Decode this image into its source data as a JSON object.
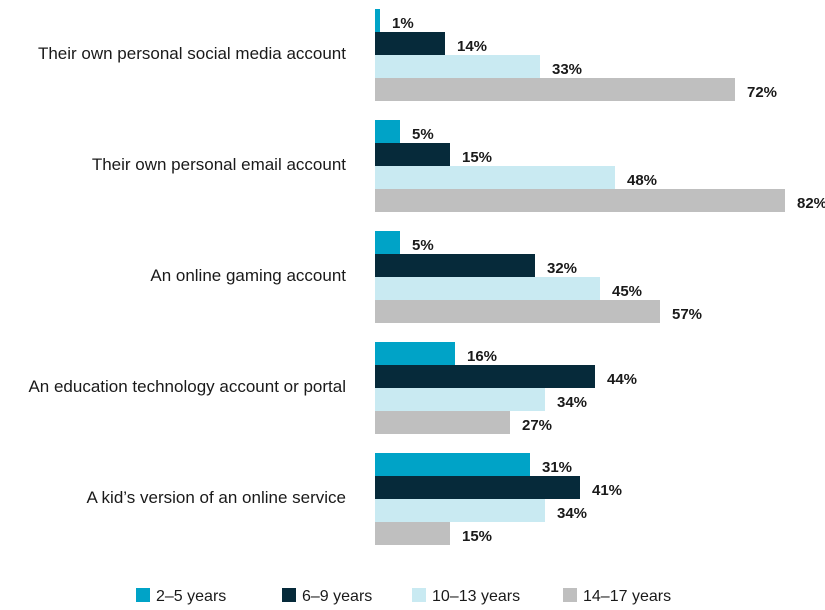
{
  "chart_data": {
    "type": "bar",
    "orientation": "horizontal",
    "categories": [
      "Their own personal social media account",
      "Their own personal email account",
      "An online gaming account",
      "An education technology account or portal",
      "A kid’s version of an online service"
    ],
    "series": [
      {
        "name": "2–5 years",
        "color": "#00a3c7",
        "values": [
          1,
          5,
          5,
          16,
          31
        ]
      },
      {
        "name": "6–9 years",
        "color": "#062a3a",
        "values": [
          14,
          15,
          32,
          44,
          41
        ]
      },
      {
        "name": "10–13 years",
        "color": "#c9eaf2",
        "values": [
          33,
          48,
          45,
          34,
          34
        ]
      },
      {
        "name": "14–17  years",
        "color": "#bfbfbf",
        "values": [
          72,
          82,
          57,
          27,
          15
        ]
      }
    ],
    "value_suffix": "%",
    "xlim": [
      0,
      100
    ],
    "grid": false,
    "legend_position": "bottom"
  }
}
